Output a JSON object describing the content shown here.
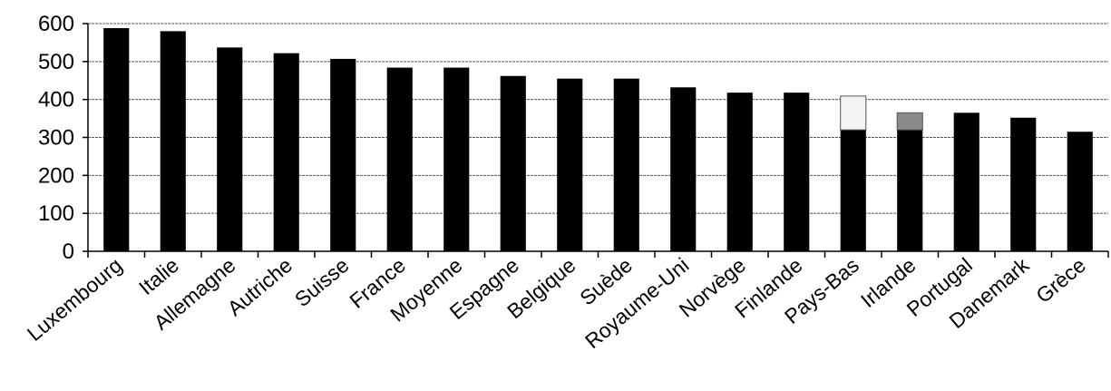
{
  "chart_data": {
    "type": "bar",
    "stacked": true,
    "title": "",
    "xlabel": "",
    "ylabel": "",
    "ylim": [
      0,
      600
    ],
    "yticks": [
      0,
      100,
      200,
      300,
      400,
      500,
      600
    ],
    "grid": "horizontal",
    "legend": "none",
    "categories": [
      "Luxembourg",
      "Italie",
      "Allemagne",
      "Autriche",
      "Suisse",
      "France",
      "Moyenne",
      "Espagne",
      "Belgique",
      "Suède",
      "Royaume-Uni",
      "Norvège",
      "Finlande",
      "Pays-Bas",
      "Irlande",
      "Portugal",
      "Danemark",
      "Grèce"
    ],
    "series": [
      {
        "color": "#000000",
        "values": [
          588,
          580,
          537,
          522,
          507,
          484,
          484,
          462,
          455,
          455,
          432,
          418,
          418,
          320,
          320,
          365,
          352,
          315
        ]
      },
      {
        "color": "#f4f4f4",
        "border": "#555555",
        "values": [
          0,
          0,
          0,
          0,
          0,
          0,
          0,
          0,
          0,
          0,
          0,
          0,
          0,
          89,
          0,
          0,
          0,
          0
        ]
      },
      {
        "color": "#8a8a8a",
        "border": "#555555",
        "values": [
          0,
          0,
          0,
          0,
          0,
          0,
          0,
          0,
          0,
          0,
          0,
          0,
          0,
          0,
          45,
          0,
          0,
          0
        ]
      }
    ]
  }
}
